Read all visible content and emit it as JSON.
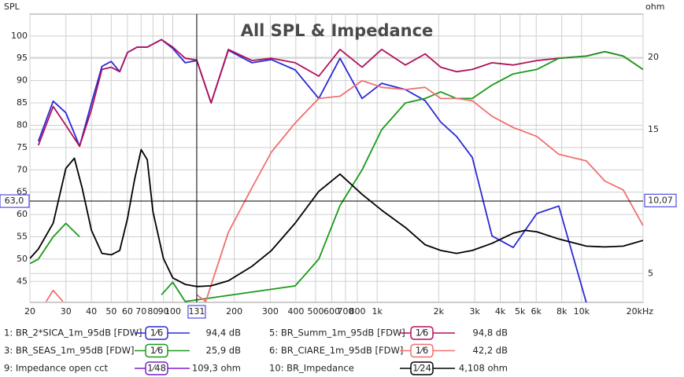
{
  "chart_data": {
    "type": "line",
    "title": "All SPL & Impedance",
    "y_label": "SPL",
    "y2_label": "ohm",
    "x_log": true,
    "grid": true,
    "xlim": [
      20,
      20000
    ],
    "ylim": [
      40.3,
      104.9
    ],
    "y2lim": [
      3,
      23
    ],
    "xticks": [
      20,
      30,
      40,
      50,
      60,
      70,
      80,
      90,
      100,
      200,
      300,
      400,
      500,
      600,
      700,
      800,
      {
        "value": 1000,
        "label": "1k"
      },
      {
        "value": 2000,
        "label": "2k"
      },
      {
        "value": 3000,
        "label": "3k"
      },
      {
        "value": 4000,
        "label": "4k"
      },
      {
        "value": 5000,
        "label": "5k"
      },
      {
        "value": 6000,
        "label": "6k"
      },
      {
        "value": 8000,
        "label": "8k"
      },
      {
        "value": 10000,
        "label": "10k"
      },
      {
        "value": 20000,
        "label": "20kHz"
      }
    ],
    "yticks": [
      45,
      50,
      55,
      60,
      65,
      70,
      75,
      80,
      85,
      90,
      95,
      100
    ],
    "y2ticks": [
      5,
      15,
      20
    ],
    "cursor": {
      "x": {
        "value": 131,
        "label": "131"
      },
      "y": {
        "value": 63.0,
        "label": "63,0"
      },
      "y2": {
        "value": 10.07,
        "label": "10,07"
      }
    },
    "series": [
      {
        "name": "1: BR_2*SICA_1m_95dB [FDW]",
        "color": "#2a2ad8",
        "smoothing": "1⁄6",
        "reading": "94,4 dB",
        "x": [
          22,
          26,
          30,
          35,
          40,
          45,
          50,
          55,
          60,
          67,
          75,
          88,
          100,
          115,
          131,
          154,
          187,
          244,
          304,
          397,
          518,
          658,
          844,
          1052,
          1374,
          1716,
          2047,
          2446,
          2920,
          3646,
          4632,
          6040,
          7740,
          10560
        ],
        "values": [
          76.4,
          85.4,
          82.8,
          75.3,
          85,
          93.2,
          94.3,
          92,
          96.3,
          97.5,
          97.5,
          99.2,
          97.2,
          94,
          94.5,
          85,
          96.8,
          94,
          94.7,
          92.4,
          86,
          95,
          86,
          89.4,
          88,
          85.5,
          80.7,
          77.5,
          72.8,
          55.2,
          52.6,
          60.2,
          61.9,
          40.2
        ]
      },
      {
        "name": "5: BR_Summ_1m_95dB [FDW]",
        "color": "#b0105a",
        "smoothing": "1⁄6",
        "reading": "94,8 dB",
        "x": [
          22,
          26,
          30,
          35,
          40,
          45,
          50,
          55,
          60,
          67,
          75,
          88,
          100,
          115,
          131,
          154,
          187,
          244,
          304,
          397,
          518,
          658,
          844,
          1052,
          1374,
          1716,
          2047,
          2446,
          2920,
          3646,
          4632,
          6040,
          7740,
          10560,
          13000,
          16000,
          20000
        ],
        "values": [
          75.5,
          84.2,
          80,
          75.3,
          83.5,
          92.5,
          93,
          92,
          96.3,
          97.5,
          97.5,
          99.2,
          97.5,
          95,
          94.6,
          85,
          97,
          94.5,
          95,
          94,
          91,
          97,
          93,
          97,
          93.5,
          96,
          93,
          92,
          92.5,
          94,
          93.5,
          94.5,
          95,
          95.5,
          96.5,
          95.5,
          92.5
        ]
      },
      {
        "name": "3: BR_SEAS_1m_95dB [FDW]",
        "color": "#1a9a1a",
        "smoothing": "1⁄6",
        "reading": "25,9 dB",
        "x": [
          20,
          22,
          26,
          30,
          35,
          40,
          88,
          100,
          115,
          397,
          518,
          658,
          844,
          1052,
          1374,
          1716,
          2047,
          2446,
          2920,
          3646,
          4632,
          6040,
          7740,
          10560,
          13000,
          16000,
          20000
        ],
        "values": [
          49,
          50,
          55,
          58,
          55,
          null,
          42,
          44.8,
          40.5,
          44,
          50,
          62,
          70,
          79,
          85,
          86,
          87.5,
          86,
          86,
          89,
          91.5,
          92.5,
          95,
          95.5,
          96.5,
          95.5,
          92.5
        ]
      },
      {
        "name": "6: BR_CIARE_1m_95dB [FDW]",
        "color": "#f07070",
        "smoothing": "1⁄6",
        "reading": "42,2 dB",
        "x": [
          24,
          26,
          29,
          115,
          131,
          145,
          187,
          244,
          304,
          397,
          518,
          658,
          844,
          1052,
          1374,
          1716,
          2047,
          2446,
          2920,
          3646,
          4632,
          6040,
          7740,
          10560,
          13000,
          16000,
          20000
        ],
        "values": [
          40.5,
          43,
          40.5,
          null,
          42,
          40.5,
          56,
          66,
          74,
          80.5,
          86,
          86.5,
          90,
          88.5,
          88,
          88.5,
          86,
          86,
          85.5,
          82,
          79.5,
          77.5,
          73.5,
          72,
          67.5,
          65.5,
          57.5
        ]
      },
      {
        "name": "10: BR_Impedance",
        "color": "#000000",
        "axis": "y2",
        "smoothing": "1⁄24",
        "reading": "4,108 ohm",
        "x": [
          20,
          22,
          26,
          30,
          33,
          36,
          40,
          45,
          50,
          55,
          60,
          65,
          70,
          75,
          80,
          90,
          100,
          115,
          131,
          154,
          187,
          244,
          304,
          397,
          518,
          658,
          844,
          1052,
          1374,
          1716,
          2047,
          2446,
          2920,
          3646,
          4632,
          5300,
          6040,
          7740,
          10560,
          13000,
          16000,
          20000
        ],
        "values": [
          6.05,
          6.7,
          8.5,
          12.3,
          13.0,
          10.95,
          8.0,
          6.4,
          6.3,
          6.6,
          8.8,
          11.5,
          13.6,
          12.9,
          9.3,
          6.05,
          4.7,
          4.25,
          4.1,
          4.15,
          4.5,
          5.5,
          6.6,
          8.5,
          10.7,
          11.9,
          10.5,
          9.4,
          8.2,
          7.0,
          6.6,
          6.4,
          6.6,
          7.1,
          7.8,
          8.0,
          7.9,
          7.4,
          6.9,
          6.85,
          6.9,
          7.3
        ]
      }
    ],
    "other_traces": [
      {
        "name": "9: Impedance open cct",
        "color": "#7a1fd6",
        "smoothing": "1⁄48",
        "reading": "109,3 ohm"
      }
    ]
  }
}
